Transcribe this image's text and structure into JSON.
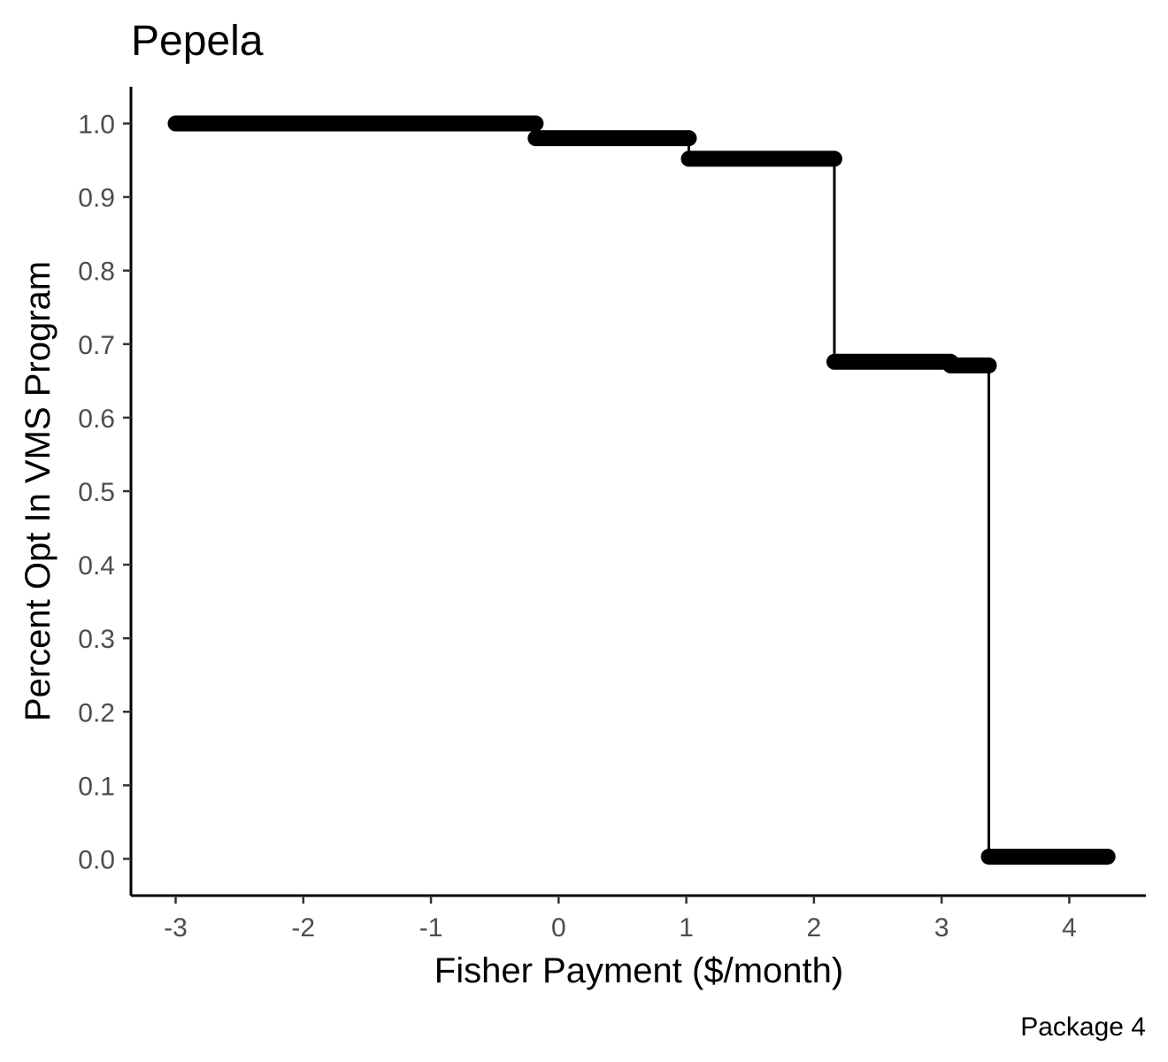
{
  "chart_data": {
    "type": "line",
    "title": "Pepela",
    "caption": "Package 4",
    "xlabel": "Fisher Payment ($/month)",
    "ylabel": "Percent Opt In VMS Program",
    "xlim": [
      -3.35,
      4.6
    ],
    "ylim": [
      -0.05,
      1.05
    ],
    "x_ticks": [
      -3,
      -2,
      -1,
      0,
      1,
      2,
      3,
      4
    ],
    "x_tick_labels": [
      "-3",
      "-2",
      "-1",
      "0",
      "1",
      "2",
      "3",
      "4"
    ],
    "y_ticks": [
      0.0,
      0.1,
      0.2,
      0.3,
      0.4,
      0.5,
      0.6,
      0.7,
      0.8,
      0.9,
      1.0
    ],
    "y_tick_labels": [
      "0.0",
      "0.1",
      "0.2",
      "0.3",
      "0.4",
      "0.5",
      "0.6",
      "0.7",
      "0.8",
      "0.9",
      "1.0"
    ],
    "grid": false,
    "legend": "none",
    "color": "#000000",
    "series": [
      {
        "segments": [
          {
            "x_start": -3.0,
            "x_end": -0.18,
            "y": 1.0
          },
          {
            "x_start": -0.18,
            "x_end": 1.02,
            "y": 0.98
          },
          {
            "x_start": 1.02,
            "x_end": 2.16,
            "y": 0.952
          },
          {
            "x_start": 2.16,
            "x_end": 3.07,
            "y": 0.676
          },
          {
            "x_start": 3.07,
            "x_end": 3.37,
            "y": 0.671
          },
          {
            "x_start": 3.37,
            "x_end": 4.3,
            "y": 0.003
          }
        ]
      }
    ]
  }
}
